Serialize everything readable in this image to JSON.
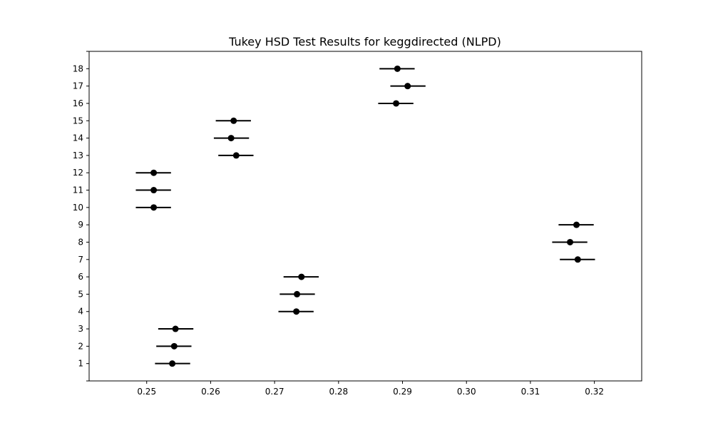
{
  "chart_data": {
    "type": "scatter",
    "title": "Tukey HSD Test Results for keggdirected (NLPD)",
    "xlabel": "",
    "ylabel": "",
    "xlim": [
      0.241,
      0.3274
    ],
    "ylim": [
      0,
      19
    ],
    "x_ticks": [
      "0.25",
      "0.26",
      "0.27",
      "0.28",
      "0.29",
      "0.30",
      "0.31",
      "0.32"
    ],
    "x_tick_values": [
      0.25,
      0.26,
      0.27,
      0.28,
      0.29,
      0.3,
      0.31,
      0.32
    ],
    "y_ticks": [
      "1",
      "2",
      "3",
      "4",
      "5",
      "6",
      "7",
      "8",
      "9",
      "10",
      "11",
      "12",
      "13",
      "14",
      "15",
      "16",
      "17",
      "18"
    ],
    "grid": false,
    "series": [
      {
        "marker_color": "#000000",
        "points": [
          {
            "group": 1,
            "mean": 0.254,
            "lower": 0.2513,
            "upper": 0.2568
          },
          {
            "group": 2,
            "mean": 0.2543,
            "lower": 0.2515,
            "upper": 0.257
          },
          {
            "group": 3,
            "mean": 0.2545,
            "lower": 0.2518,
            "upper": 0.2573
          },
          {
            "group": 4,
            "mean": 0.2734,
            "lower": 0.2706,
            "upper": 0.2761
          },
          {
            "group": 5,
            "mean": 0.2735,
            "lower": 0.2708,
            "upper": 0.2763
          },
          {
            "group": 6,
            "mean": 0.2742,
            "lower": 0.2714,
            "upper": 0.2769
          },
          {
            "group": 7,
            "mean": 0.3174,
            "lower": 0.3146,
            "upper": 0.3201
          },
          {
            "group": 8,
            "mean": 0.3162,
            "lower": 0.3134,
            "upper": 0.3189
          },
          {
            "group": 9,
            "mean": 0.3172,
            "lower": 0.3144,
            "upper": 0.3199
          },
          {
            "group": 10,
            "mean": 0.2511,
            "lower": 0.2483,
            "upper": 0.2538
          },
          {
            "group": 11,
            "mean": 0.2511,
            "lower": 0.2483,
            "upper": 0.2538
          },
          {
            "group": 12,
            "mean": 0.2511,
            "lower": 0.2483,
            "upper": 0.2538
          },
          {
            "group": 13,
            "mean": 0.264,
            "lower": 0.2612,
            "upper": 0.2667
          },
          {
            "group": 14,
            "mean": 0.2632,
            "lower": 0.2605,
            "upper": 0.266
          },
          {
            "group": 15,
            "mean": 0.2636,
            "lower": 0.2608,
            "upper": 0.2663
          },
          {
            "group": 16,
            "mean": 0.289,
            "lower": 0.2862,
            "upper": 0.2917
          },
          {
            "group": 17,
            "mean": 0.2908,
            "lower": 0.2881,
            "upper": 0.2936
          },
          {
            "group": 18,
            "mean": 0.2892,
            "lower": 0.2864,
            "upper": 0.2919
          }
        ]
      }
    ]
  }
}
